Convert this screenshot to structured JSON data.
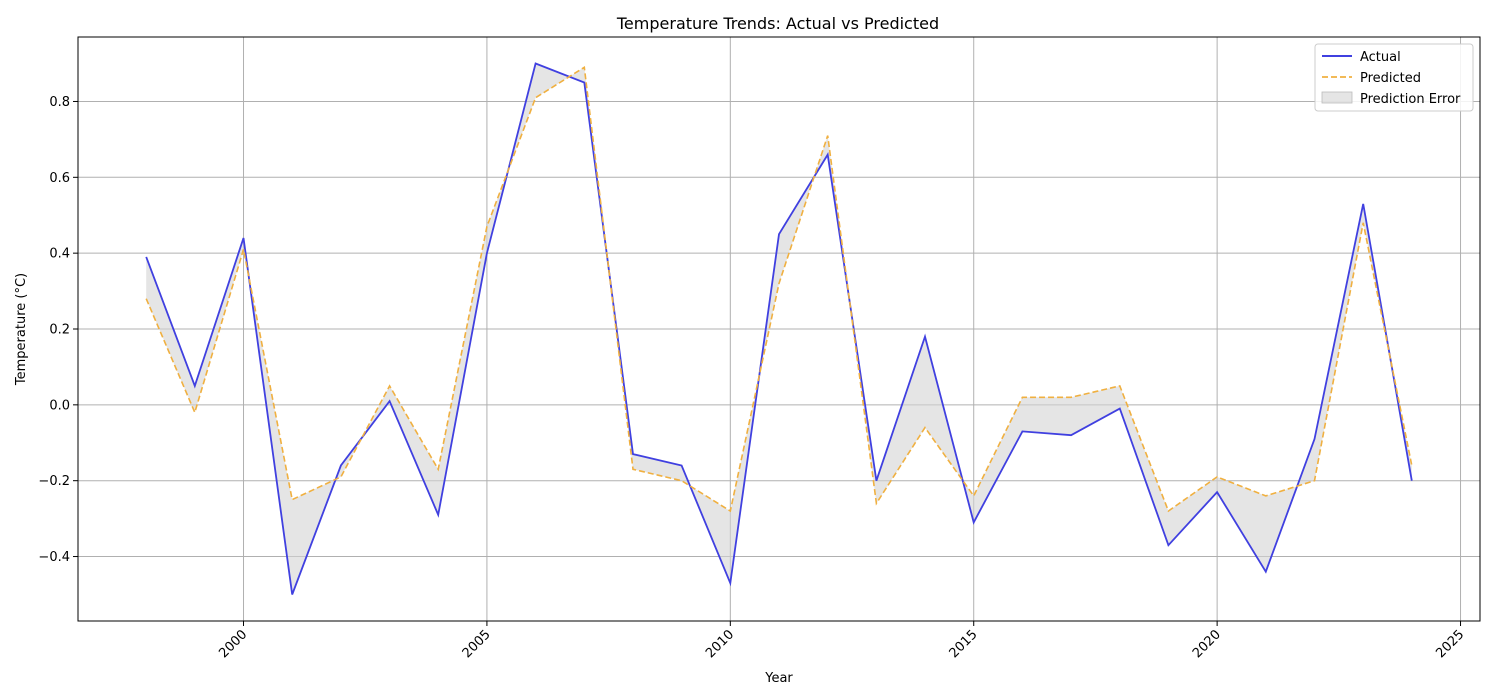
{
  "chart_data": {
    "type": "line",
    "title": "Temperature Trends: Actual vs Predicted",
    "xlabel": "Year",
    "ylabel": "Temperature (°C)",
    "xlim": [
      1996.6,
      2025.4
    ],
    "ylim": [
      -0.57,
      0.97
    ],
    "grid": true,
    "legend_position": "top-right",
    "x_ticks": [
      2000,
      2005,
      2010,
      2015,
      2020,
      2025
    ],
    "y_ticks": [
      -0.4,
      -0.2,
      0.0,
      0.2,
      0.4,
      0.6,
      0.8
    ],
    "x_tick_labels": [
      "2000",
      "2005",
      "2010",
      "2015",
      "2020",
      "2025"
    ],
    "y_tick_labels": [
      "−0.4",
      "−0.2",
      "0.0",
      "0.2",
      "0.4",
      "0.6",
      "0.8"
    ],
    "x": [
      1998,
      1999,
      2000,
      2001,
      2002,
      2003,
      2004,
      2005,
      2006,
      2007,
      2008,
      2009,
      2010,
      2011,
      2012,
      2013,
      2014,
      2015,
      2016,
      2017,
      2018,
      2019,
      2020,
      2021,
      2022,
      2023,
      2024
    ],
    "series": [
      {
        "name": "Actual",
        "color": "#4040e0",
        "style": "solid",
        "values": [
          0.39,
          0.05,
          0.44,
          -0.5,
          -0.16,
          0.01,
          -0.29,
          0.4,
          0.9,
          0.85,
          -0.13,
          -0.16,
          -0.47,
          0.45,
          0.66,
          -0.2,
          0.18,
          -0.31,
          -0.07,
          -0.08,
          -0.01,
          -0.37,
          -0.23,
          -0.44,
          -0.09,
          0.53,
          -0.2
        ]
      },
      {
        "name": "Predicted",
        "color": "#f0b040",
        "style": "dashed",
        "values": [
          0.28,
          -0.02,
          0.41,
          -0.25,
          -0.19,
          0.05,
          -0.17,
          0.47,
          0.81,
          0.89,
          -0.17,
          -0.2,
          -0.28,
          0.32,
          0.71,
          -0.26,
          -0.06,
          -0.24,
          0.02,
          0.02,
          0.05,
          -0.28,
          -0.19,
          -0.24,
          -0.2,
          0.48,
          -0.16
        ]
      }
    ],
    "band": {
      "name": "Prediction Error",
      "color": "#d3d3d3"
    }
  }
}
